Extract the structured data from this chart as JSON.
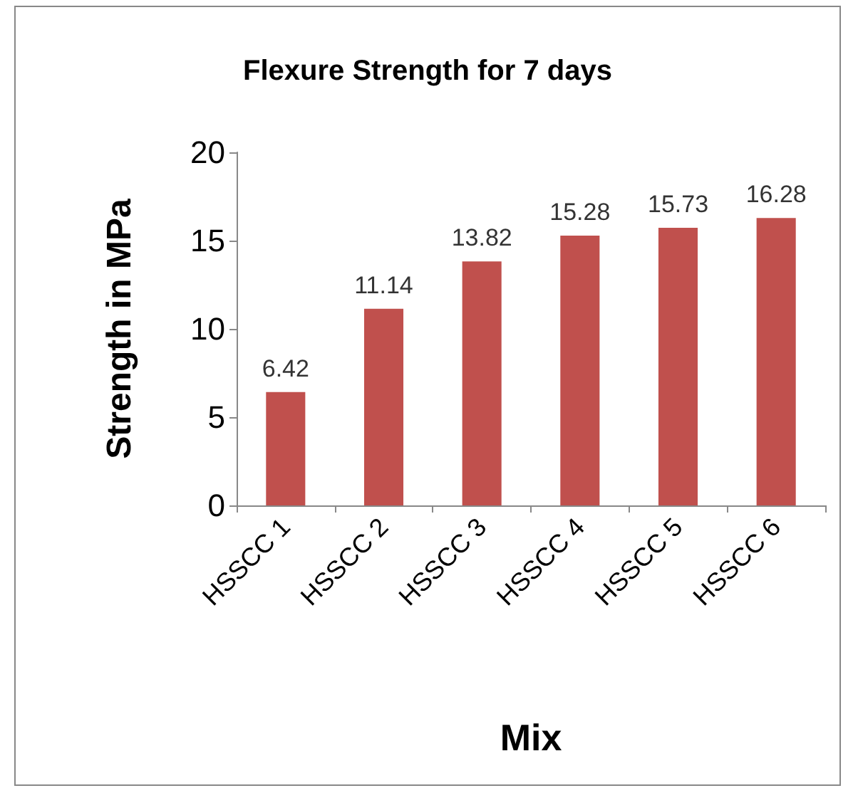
{
  "chart_data": {
    "type": "bar",
    "title": "Flexure Strength for 7 days",
    "xlabel": "Mix",
    "ylabel": "Strength in MPa",
    "categories": [
      "HSSCC 1",
      "HSSCC 2",
      "HSSCC 3",
      "HSSCC 4",
      "HSSCC 5",
      "HSSCC 6"
    ],
    "values": [
      6.42,
      11.14,
      13.82,
      15.28,
      15.73,
      16.28
    ],
    "color": "#c0504d",
    "ylim": [
      0,
      20
    ],
    "yticks": [
      0,
      5,
      10,
      15,
      20
    ],
    "data_labels": true
  }
}
